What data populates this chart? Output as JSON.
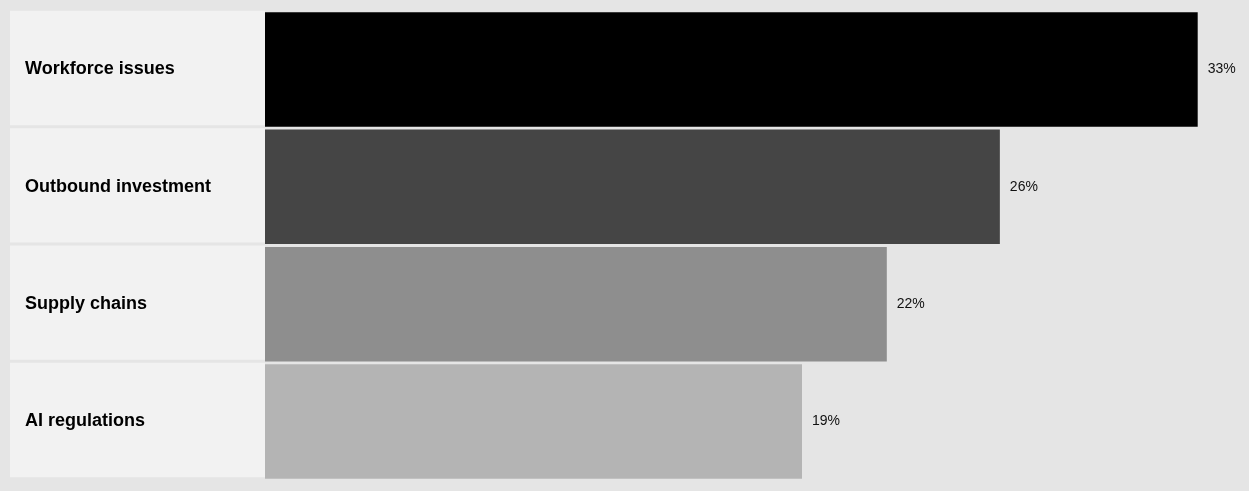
{
  "chart_data": {
    "type": "bar",
    "orientation": "horizontal",
    "categories": [
      "Workforce issues",
      "Outbound investment",
      "Supply chains",
      "AI regulations"
    ],
    "values": [
      33,
      26,
      22,
      19
    ],
    "colors": [
      "#000000",
      "#454545",
      "#8e8e8e",
      "#b4b4b4"
    ],
    "data_labels": true,
    "value_labels": [
      "33%",
      "26%",
      "22%",
      "19%"
    ],
    "legend": false
  }
}
